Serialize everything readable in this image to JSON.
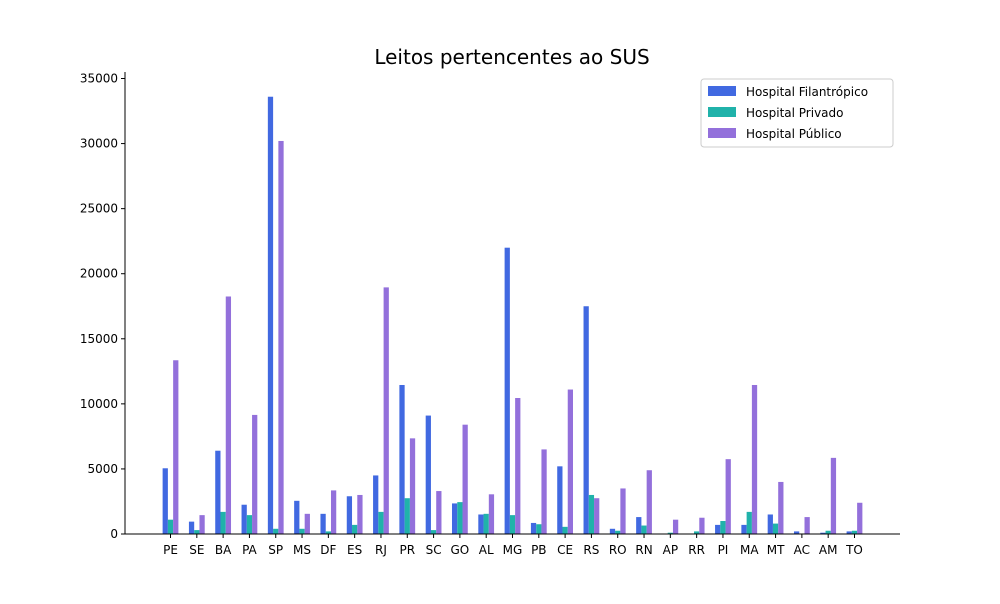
{
  "chart_data": {
    "type": "bar",
    "title": "Leitos pertencentes ao SUS",
    "xlabel": "",
    "ylabel": "",
    "ylim": [
      0,
      35500
    ],
    "yticks": [
      0,
      5000,
      10000,
      15000,
      20000,
      25000,
      30000,
      35000
    ],
    "grid": false,
    "legend_position": "top-right",
    "categories": [
      "PE",
      "SE",
      "BA",
      "PA",
      "SP",
      "MS",
      "DF",
      "ES",
      "RJ",
      "PR",
      "SC",
      "GO",
      "AL",
      "MG",
      "PB",
      "CE",
      "RS",
      "RO",
      "RN",
      "AP",
      "RR",
      "PI",
      "MA",
      "MT",
      "AC",
      "AM",
      "TO"
    ],
    "series": [
      {
        "name": "Hospital Filantrópico",
        "color": "#4169e1",
        "values": [
          5050,
          950,
          6400,
          2250,
          33600,
          2550,
          1550,
          2900,
          4500,
          11450,
          9100,
          2350,
          1500,
          22000,
          850,
          5200,
          17500,
          400,
          1300,
          0,
          0,
          700,
          700,
          1500,
          200,
          100,
          200
        ]
      },
      {
        "name": "Hospital Privado",
        "color": "#20b2aa",
        "values": [
          1100,
          300,
          1700,
          1450,
          400,
          400,
          200,
          700,
          1700,
          2750,
          300,
          2450,
          1550,
          1450,
          750,
          550,
          3000,
          250,
          650,
          100,
          200,
          1000,
          1700,
          800,
          0,
          250,
          250
        ]
      },
      {
        "name": "Hospital Público",
        "color": "#9370db",
        "values": [
          13350,
          1450,
          18250,
          9150,
          30200,
          1550,
          3350,
          3000,
          18950,
          7350,
          3300,
          8400,
          3050,
          10450,
          6500,
          11100,
          2750,
          3500,
          4900,
          1100,
          1250,
          5750,
          11450,
          4000,
          1300,
          5850,
          2400
        ]
      }
    ]
  }
}
